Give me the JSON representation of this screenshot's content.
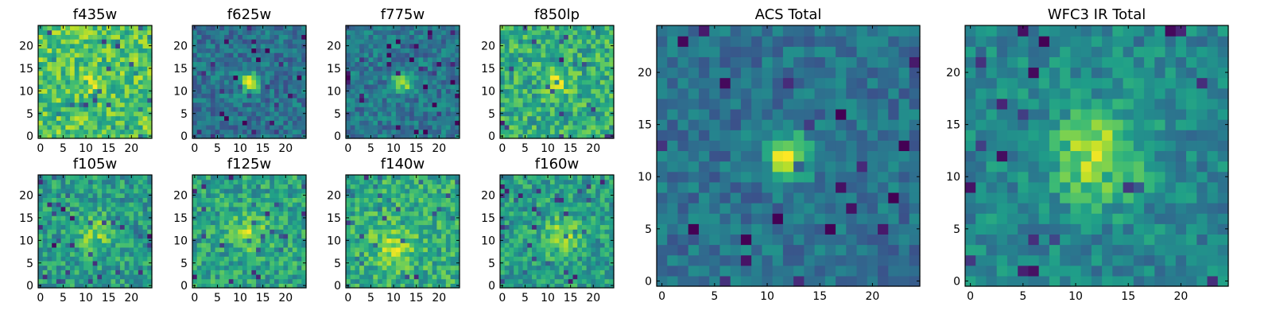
{
  "chart_data": [
    {
      "type": "heatmap",
      "title": "f435w",
      "size": 25,
      "seed": 11,
      "peak": [
        12,
        12
      ],
      "amp": 0.18,
      "noise": 0.2,
      "base": 0.72,
      "sigma": 1.6,
      "xticks": [
        0,
        5,
        10,
        15,
        20
      ],
      "yticks": [
        0,
        5,
        10,
        15,
        20
      ]
    },
    {
      "type": "heatmap",
      "title": "f625w",
      "size": 25,
      "seed": 23,
      "peak": [
        12,
        12
      ],
      "amp": 0.55,
      "noise": 0.15,
      "base": 0.38,
      "sigma": 1.6,
      "xticks": [
        0,
        5,
        10,
        15,
        20
      ],
      "yticks": [
        0,
        5,
        10,
        15,
        20
      ]
    },
    {
      "type": "heatmap",
      "title": "f775w",
      "size": 25,
      "seed": 37,
      "peak": [
        12,
        12
      ],
      "amp": 0.55,
      "noise": 0.15,
      "base": 0.4,
      "sigma": 1.5,
      "xticks": [
        0,
        5,
        10,
        15,
        20
      ],
      "yticks": [
        0,
        5,
        10,
        15,
        20
      ]
    },
    {
      "type": "heatmap",
      "title": "f850lp",
      "size": 25,
      "seed": 41,
      "peak": [
        12,
        12
      ],
      "amp": 0.3,
      "noise": 0.2,
      "base": 0.62,
      "sigma": 1.7,
      "xticks": [
        0,
        5,
        10,
        15,
        20
      ],
      "yticks": [
        0,
        5,
        10,
        15,
        20
      ]
    },
    {
      "type": "heatmap",
      "title": "f105w",
      "size": 25,
      "seed": 53,
      "peak": [
        12,
        12
      ],
      "amp": 0.25,
      "noise": 0.18,
      "base": 0.55,
      "sigma": 2.8,
      "xticks": [
        0,
        5,
        10,
        15,
        20
      ],
      "yticks": [
        0,
        5,
        10,
        15,
        20
      ]
    },
    {
      "type": "heatmap",
      "title": "f125w",
      "size": 25,
      "seed": 67,
      "peak": [
        12,
        12
      ],
      "amp": 0.25,
      "noise": 0.18,
      "base": 0.58,
      "sigma": 2.8,
      "xticks": [
        0,
        5,
        10,
        15,
        20
      ],
      "yticks": [
        0,
        5,
        10,
        15,
        20
      ]
    },
    {
      "type": "heatmap",
      "title": "f140w",
      "size": 25,
      "seed": 79,
      "peak": [
        10,
        9
      ],
      "amp": 0.22,
      "noise": 0.18,
      "base": 0.62,
      "sigma": 3.2,
      "xticks": [
        0,
        5,
        10,
        15,
        20
      ],
      "yticks": [
        0,
        5,
        10,
        15,
        20
      ]
    },
    {
      "type": "heatmap",
      "title": "f160w",
      "size": 25,
      "seed": 83,
      "peak": [
        13,
        11
      ],
      "amp": 0.3,
      "noise": 0.18,
      "base": 0.56,
      "sigma": 2.6,
      "xticks": [
        0,
        5,
        10,
        15,
        20
      ],
      "yticks": [
        0,
        5,
        10,
        15,
        20
      ]
    },
    {
      "type": "heatmap",
      "title": "ACS Total",
      "size": 25,
      "seed": 97,
      "peak": [
        12,
        12
      ],
      "amp": 0.6,
      "noise": 0.13,
      "base": 0.38,
      "sigma": 1.5,
      "xticks": [
        0,
        5,
        10,
        15,
        20
      ],
      "yticks": [
        0,
        5,
        10,
        15,
        20
      ]
    },
    {
      "type": "heatmap",
      "title": "WFC3 IR Total",
      "size": 25,
      "seed": 109,
      "peak": [
        12,
        12
      ],
      "amp": 0.42,
      "noise": 0.14,
      "base": 0.46,
      "sigma": 3.0,
      "xticks": [
        0,
        5,
        10,
        15,
        20
      ],
      "yticks": [
        0,
        5,
        10,
        15,
        20
      ]
    }
  ],
  "colormap": [
    "#440154",
    "#482878",
    "#3e4989",
    "#31688e",
    "#26828e",
    "#1f9e89",
    "#35b779",
    "#6ece58",
    "#b5de2b",
    "#fde725"
  ]
}
